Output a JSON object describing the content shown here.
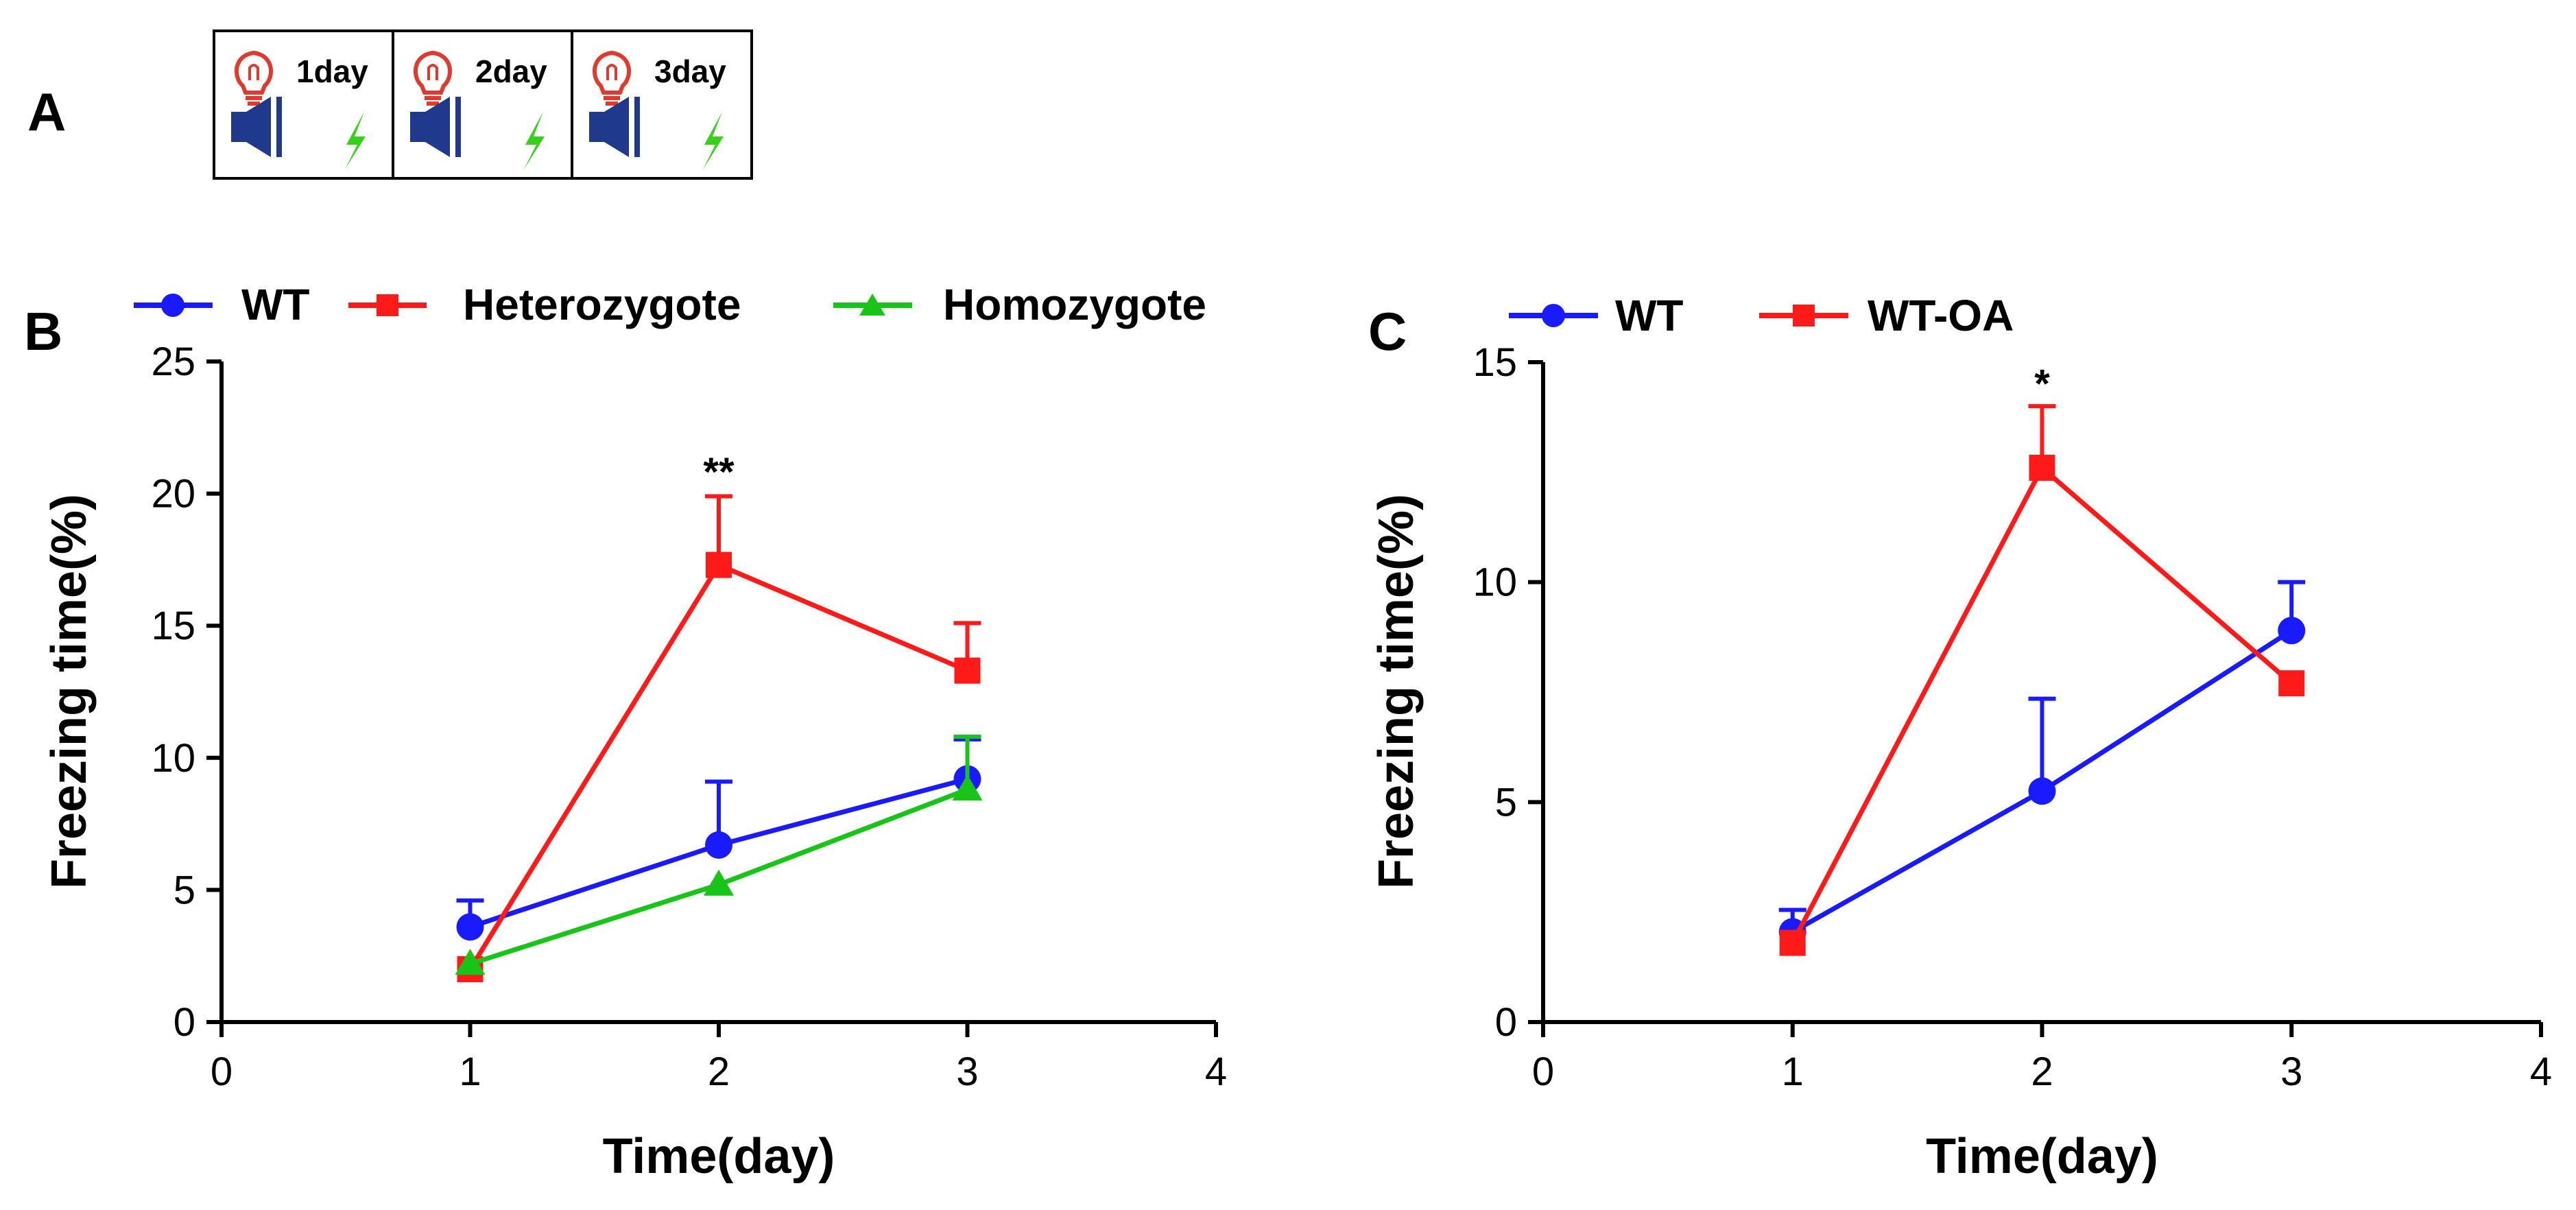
{
  "panel_a": {
    "label": "A",
    "days": [
      {
        "label": "1day"
      },
      {
        "label": "2day"
      },
      {
        "label": "3day"
      }
    ],
    "icons": [
      "light-bulb-icon",
      "speaker-icon",
      "lightning-icon"
    ],
    "colors": {
      "bulb": "#e03a2e",
      "speaker": "#1f3a8c",
      "lightning": "#38d11a"
    }
  },
  "chart_data": [
    {
      "panel_label": "B",
      "type": "line",
      "xlabel": "Time(day)",
      "ylabel": "Freezing time(%)",
      "xlim": [
        0,
        4
      ],
      "ylim": [
        0,
        25
      ],
      "xticks": [
        0,
        1,
        2,
        3,
        4
      ],
      "yticks": [
        0,
        5,
        10,
        15,
        20,
        25
      ],
      "x": [
        1,
        2,
        3
      ],
      "series": [
        {
          "name": "WT",
          "color": "#1a1aff",
          "marker": "circle",
          "values": [
            3.6,
            6.7,
            9.2
          ],
          "errors": [
            1.0,
            2.4,
            1.5
          ]
        },
        {
          "name": "Heterozygote",
          "color": "#ff1a1a",
          "marker": "square",
          "values": [
            2.0,
            17.3,
            13.3
          ],
          "errors": [
            0,
            2.6,
            1.8
          ]
        },
        {
          "name": "Homozygote",
          "color": "#19c419",
          "marker": "triangle",
          "values": [
            2.2,
            5.2,
            8.8
          ],
          "errors": [
            0,
            0,
            2.0
          ]
        }
      ],
      "annotations": [
        {
          "text": "**",
          "x": 2,
          "y": 20.3
        }
      ],
      "legend": "top"
    },
    {
      "panel_label": "C",
      "type": "line",
      "xlabel": "Time(day)",
      "ylabel": "Freezing time(%)",
      "xlim": [
        0,
        4
      ],
      "ylim": [
        0,
        15
      ],
      "xticks": [
        0,
        1,
        2,
        3,
        4
      ],
      "yticks": [
        0,
        5,
        10,
        15
      ],
      "x": [
        1,
        2,
        3
      ],
      "series": [
        {
          "name": "WT",
          "color": "#1a1aff",
          "marker": "circle",
          "values": [
            2.05,
            5.25,
            8.9
          ],
          "errors": [
            0.5,
            2.1,
            1.1
          ]
        },
        {
          "name": "WT-OA",
          "color": "#ff1a1a",
          "marker": "square",
          "values": [
            1.8,
            12.6,
            7.7
          ],
          "errors": [
            0,
            1.4,
            0
          ]
        }
      ],
      "annotations": [
        {
          "text": "*",
          "x": 2,
          "y": 14.2
        }
      ],
      "legend": "top"
    }
  ]
}
